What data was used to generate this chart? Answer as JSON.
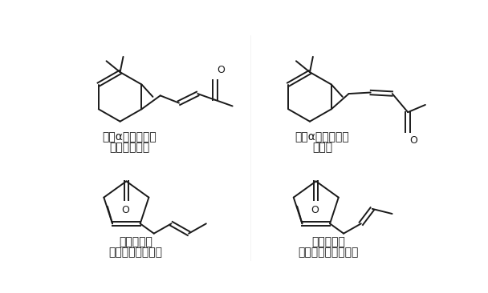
{
  "background_color": "#ffffff",
  "molecules": [
    {
      "name": "反－α－紫罗兰锐",
      "scent": "有紫罗兰花香",
      "col": 0
    },
    {
      "name": "顺－α－紫罗兰锐",
      "scent": "柏木香",
      "col": 1
    },
    {
      "name": "反－茅莉锐",
      "scent": "无茅莉香，油脂气",
      "col": 0
    },
    {
      "name": "顺－茅莉锐",
      "scent": "茅莉花香，淡醒糖之",
      "col": 1
    }
  ],
  "line_color": "#1a1a1a",
  "line_width": 1.4,
  "text_color": "#1a1a1a",
  "name_fontsize": 10,
  "scent_fontsize": 10
}
